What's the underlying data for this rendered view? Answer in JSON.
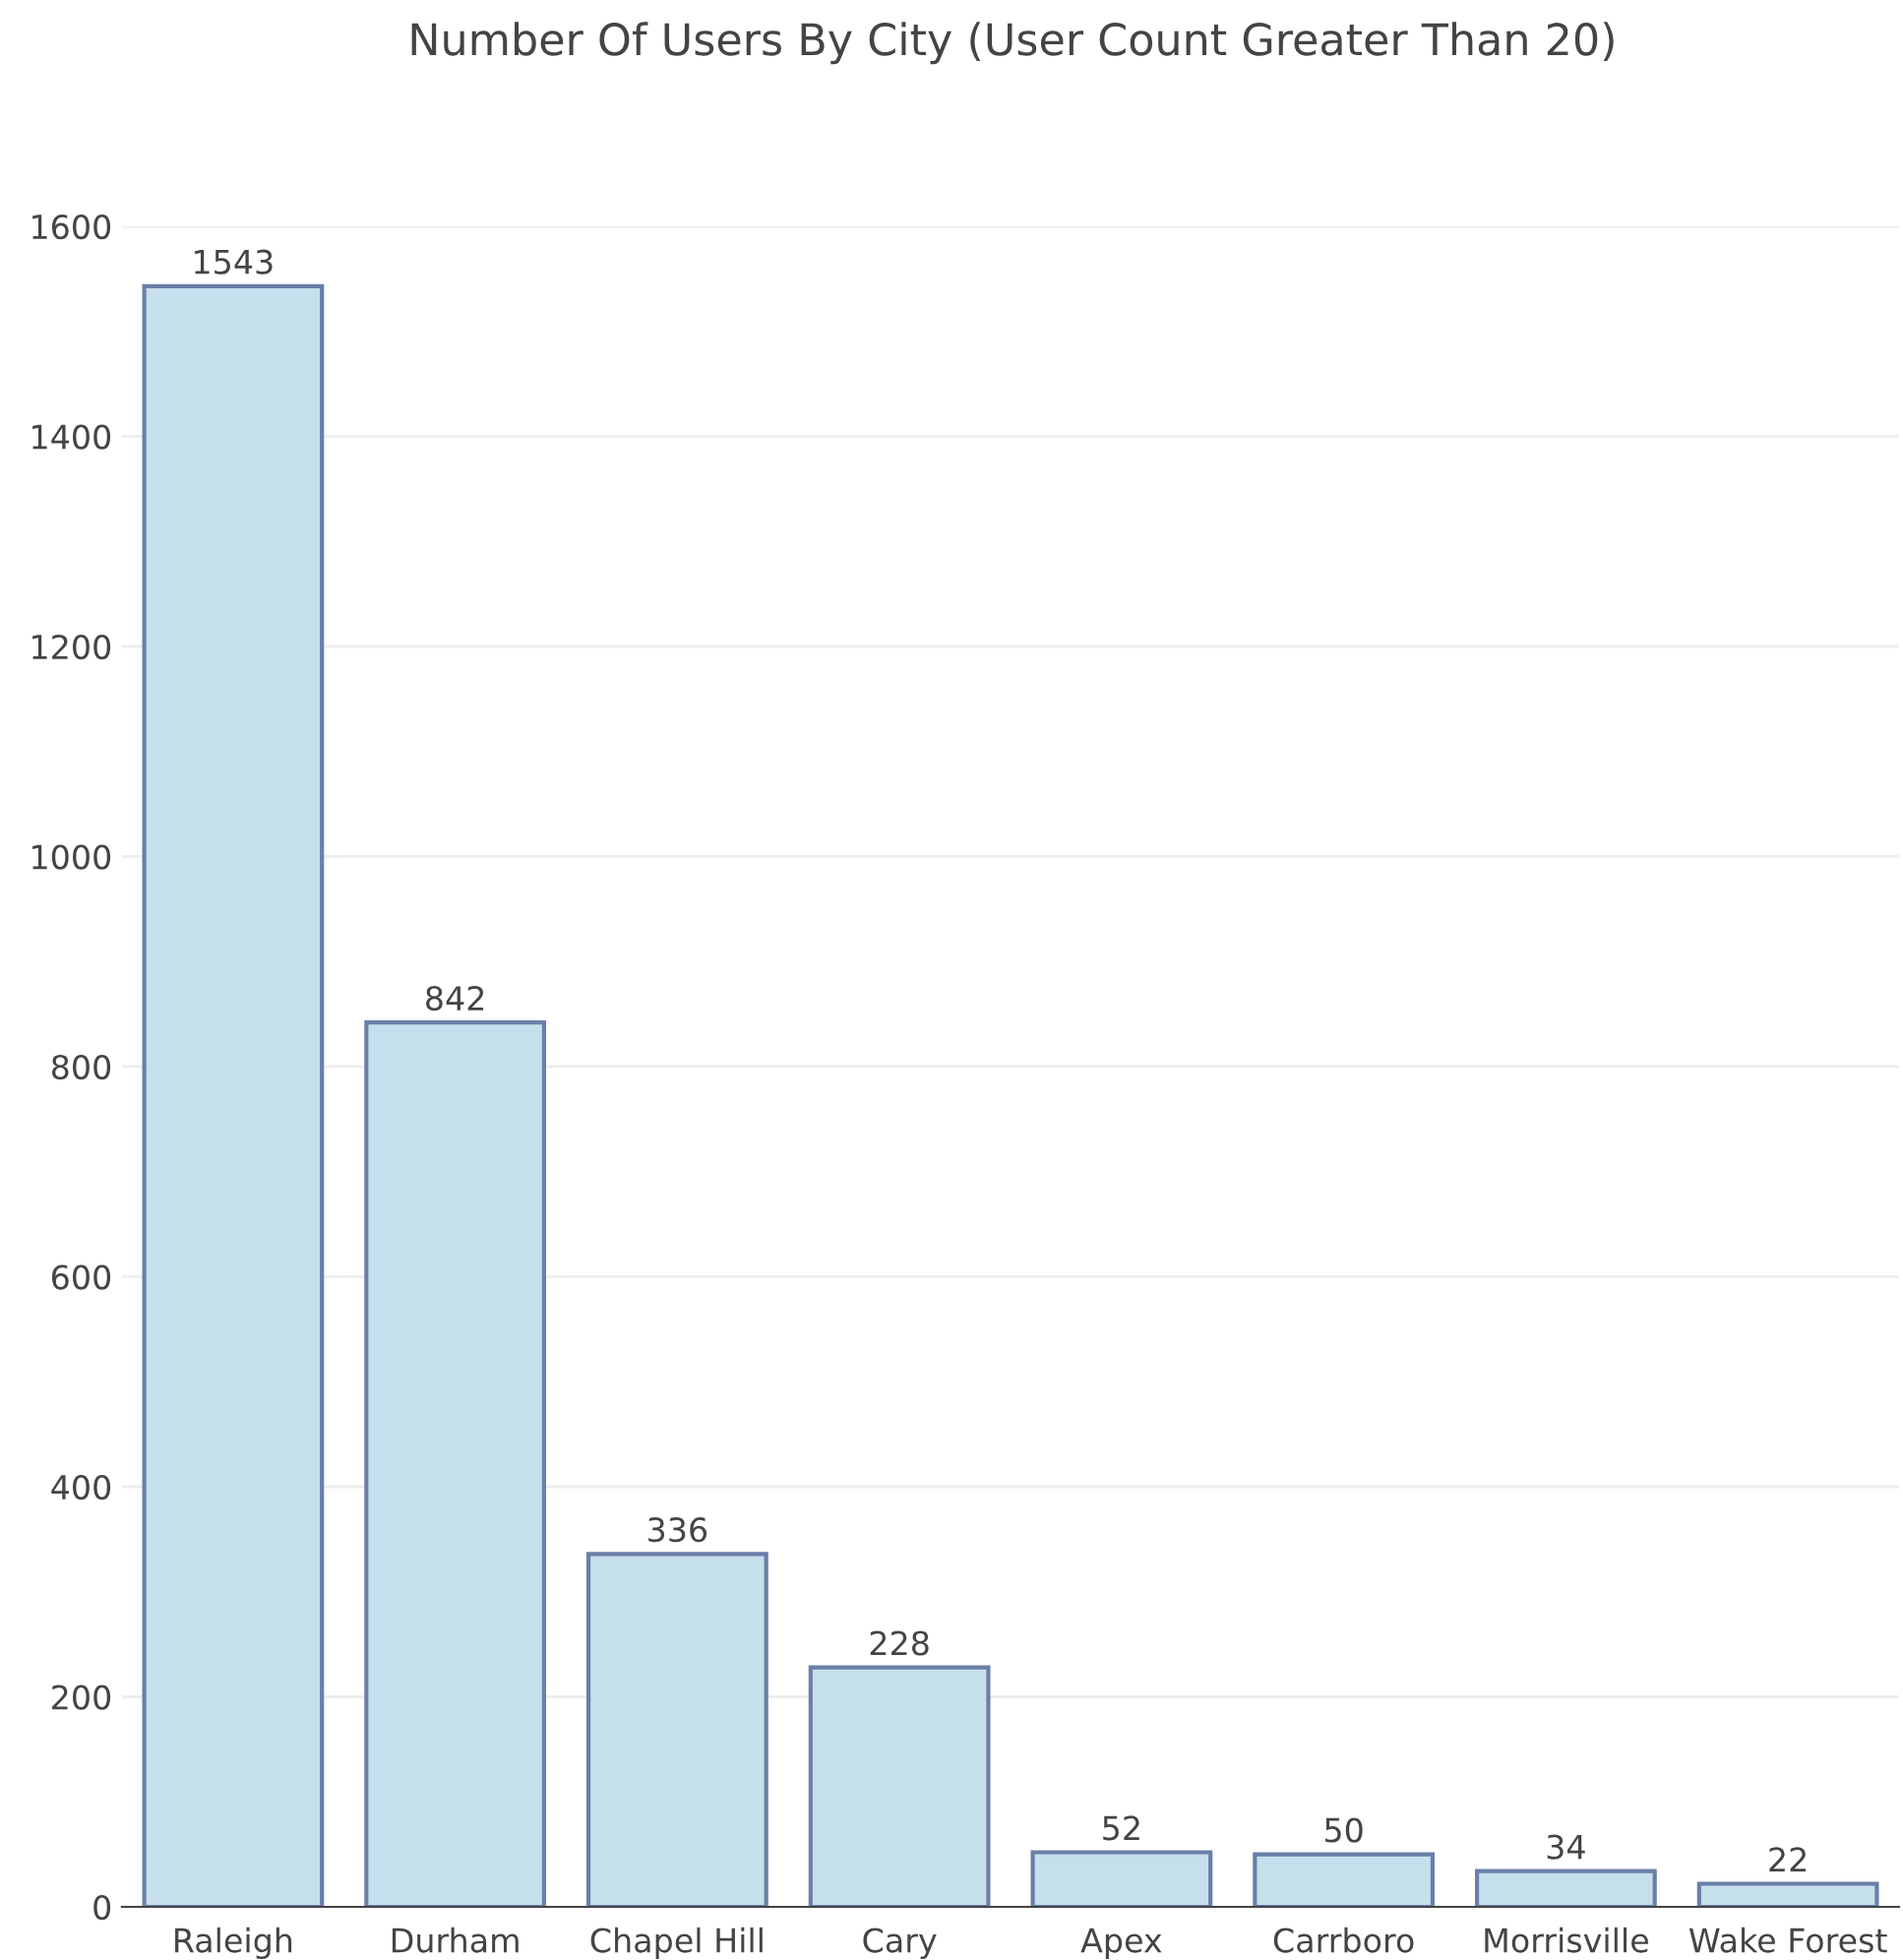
{
  "chart_data": {
    "type": "bar",
    "title": "Number Of Users By City (User Count Greater Than 20)",
    "categories": [
      "Raleigh",
      "Durham",
      "Chapel Hill",
      "Cary",
      "Apex",
      "Carrboro",
      "Morrisville",
      "Wake Forest"
    ],
    "values": [
      1543,
      842,
      336,
      228,
      52,
      50,
      34,
      22
    ],
    "color": "#c6dfec",
    "ylim": [
      0,
      1600
    ],
    "yticks": [
      0,
      200,
      400,
      600,
      800,
      1000,
      1200,
      1400,
      1600
    ],
    "grid": "y",
    "data_labels": true
  }
}
